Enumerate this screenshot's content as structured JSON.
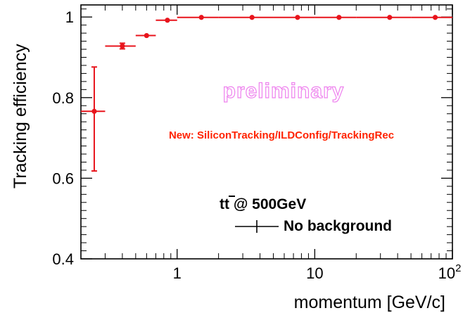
{
  "chart_data": {
    "type": "scatter",
    "ylabel": "Tracking efficiency",
    "xlabel": "momentum [GeV/c]",
    "xscale": "log",
    "xlim": [
      0.2,
      100
    ],
    "ylim": [
      0.4,
      1.03
    ],
    "x_ticks": [
      {
        "value": 1,
        "label": "1"
      },
      {
        "value": 10,
        "label": "10"
      },
      {
        "value": 100,
        "label_base": "10",
        "label_exp": "2"
      }
    ],
    "y_ticks": [
      {
        "value": 0.4,
        "label": "0.4"
      },
      {
        "value": 0.6,
        "label": "0.6"
      },
      {
        "value": 0.8,
        "label": "0.8"
      },
      {
        "value": 1.0,
        "label": "1"
      }
    ],
    "grid": false,
    "legend_position": "bottom-right",
    "watermark": "preliminary",
    "watermark_color": "#ee82ee",
    "annotation": "New: SiliconTracking/ILDConfig/TrackingRec",
    "annotation_color": "#ff2200",
    "legend_title_main": "t",
    "legend_title_bar": "t",
    "legend_title_rest": " @ 500GeV",
    "series": [
      {
        "name": "No background",
        "color": "#e8141c",
        "points": [
          {
            "x": 0.25,
            "xlo": 0.2,
            "xhi": 0.3,
            "y": 0.766,
            "ylo": 0.618,
            "yhi": 0.876
          },
          {
            "x": 0.4,
            "xlo": 0.3,
            "xhi": 0.5,
            "y": 0.928,
            "ylo": 0.921,
            "yhi": 0.935
          },
          {
            "x": 0.6,
            "xlo": 0.5,
            "xhi": 0.7,
            "y": 0.954,
            "ylo": 0.95,
            "yhi": 0.958
          },
          {
            "x": 0.85,
            "xlo": 0.7,
            "xhi": 1.0,
            "y": 0.992,
            "ylo": 0.99,
            "yhi": 0.994
          },
          {
            "x": 1.5,
            "xlo": 1.0,
            "xhi": 2.0,
            "y": 0.999,
            "ylo": 0.998,
            "yhi": 1.0
          },
          {
            "x": 3.5,
            "xlo": 2.0,
            "xhi": 5.0,
            "y": 0.999,
            "ylo": 0.998,
            "yhi": 1.0
          },
          {
            "x": 7.5,
            "xlo": 5.0,
            "xhi": 10.0,
            "y": 0.999,
            "ylo": 0.998,
            "yhi": 1.0
          },
          {
            "x": 15,
            "xlo": 10.0,
            "xhi": 20.0,
            "y": 0.999,
            "ylo": 0.998,
            "yhi": 1.0
          },
          {
            "x": 35,
            "xlo": 20.0,
            "xhi": 50.0,
            "y": 0.999,
            "ylo": 0.998,
            "yhi": 1.0
          },
          {
            "x": 75,
            "xlo": 50.0,
            "xhi": 100.0,
            "y": 0.999,
            "ylo": 0.994,
            "yhi": 1.0
          }
        ]
      }
    ]
  }
}
